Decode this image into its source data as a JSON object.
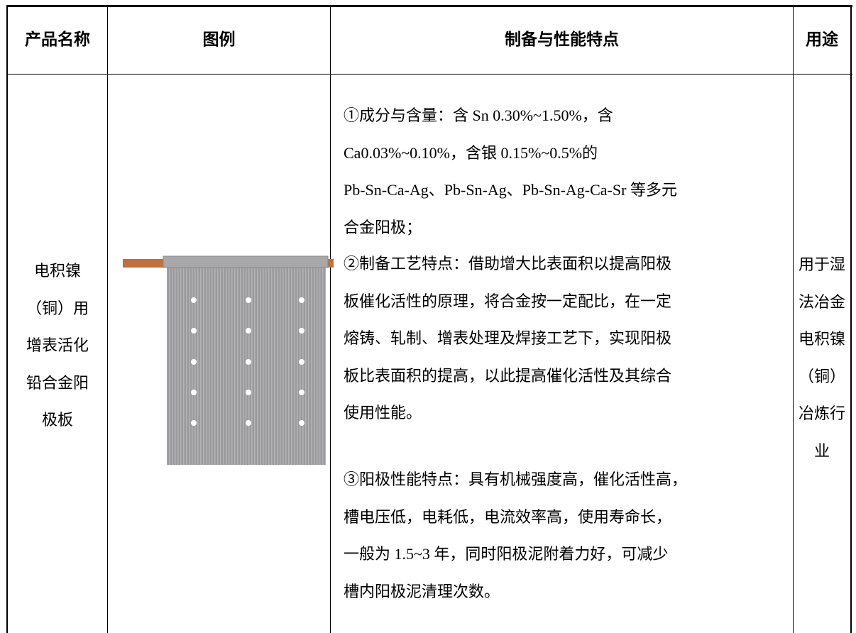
{
  "table": {
    "header": [
      "产品名称",
      "图例",
      "制备与性能特点",
      "用途"
    ],
    "rows": [
      {
        "name_lines": [
          "电积镍",
          "（铜）用",
          "增表活化",
          "铅合金阳",
          "极板"
        ],
        "features": [
          [
            "①成分与含量：含 Sn 0.30%~1.50%，含",
            "Ca0.03%~0.10%，含银 0.15%~0.5%的",
            "Pb-Sn-Ca-Ag、Pb-Sn-Ag、Pb-Sn-Ag-Ca-Sr 等多元",
            "合金阳极；"
          ],
          [
            "②制备工艺特点：借助增大比表面积以提高阳极",
            "板催化活性的原理，将合金按一定配比，在一定",
            "熔铸、轧制、增表处理及焊接工艺下，实现阳极",
            "板比表面积的提高，以此提高催化活性及其综合",
            "使用性能。"
          ],
          [
            "③阳极性能特点：具有机械强度高，催化活性高，",
            "槽电压低，电耗低，电流效率高，使用寿命长，",
            "一般为 1.5~3 年，同时阳极泥附着力好，可减少",
            "槽内阳极泥清理次数。"
          ]
        ],
        "usage_lines": [
          "用于湿",
          "法冶金",
          "电积镍",
          "（铜）",
          "冶炼行",
          "业"
        ]
      }
    ]
  }
}
